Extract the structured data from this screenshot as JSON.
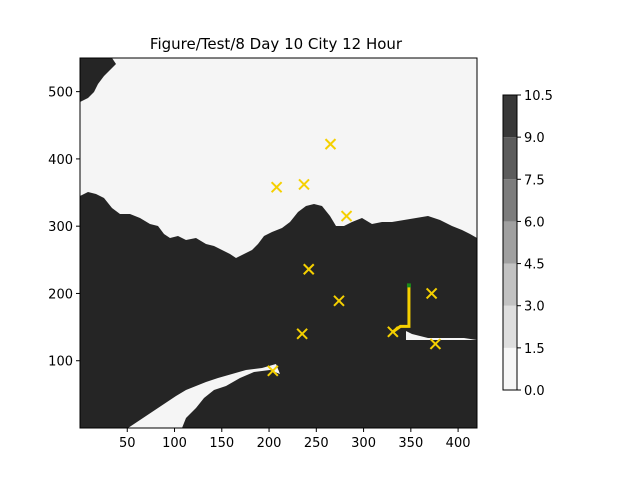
{
  "chart_data": {
    "type": "heatmap",
    "title": "Figure/Test/8 Day 10 City 12 Hour",
    "xlabel": "",
    "ylabel": "",
    "xlim": [
      0,
      420
    ],
    "ylim": [
      0,
      550
    ],
    "xticks": [
      50,
      100,
      150,
      200,
      250,
      300,
      350,
      400
    ],
    "yticks": [
      100,
      200,
      300,
      400,
      500
    ],
    "grid": false,
    "map_colors": {
      "land": "#f5f5f5",
      "water": "#252525"
    },
    "cities": [
      {
        "x": 265,
        "y": 422
      },
      {
        "x": 208,
        "y": 358
      },
      {
        "x": 237,
        "y": 362
      },
      {
        "x": 282,
        "y": 315
      },
      {
        "x": 242,
        "y": 236
      },
      {
        "x": 274,
        "y": 189
      },
      {
        "x": 372,
        "y": 200
      },
      {
        "x": 235,
        "y": 140
      },
      {
        "x": 331,
        "y": 143
      },
      {
        "x": 376,
        "y": 125
      },
      {
        "x": 204,
        "y": 85
      }
    ],
    "city_color": "#f5d000",
    "path": {
      "color": "#f5d000",
      "points": [
        [
          348,
          212
        ],
        [
          348,
          151
        ],
        [
          339,
          151
        ],
        [
          331,
          143
        ]
      ],
      "start_marker_color": "#1a8a1a"
    },
    "colorbar": {
      "levels": [
        0.0,
        1.5,
        3.0,
        4.5,
        6.0,
        7.5,
        9.0,
        10.5
      ],
      "labels": [
        "0.0",
        "1.5",
        "3.0",
        "4.5",
        "6.0",
        "7.5",
        "9.0",
        "10.5"
      ],
      "colors": [
        "#f7f7f7",
        "#dedede",
        "#c2c2c2",
        "#a0a0a0",
        "#7d7d7d",
        "#5c5c5c",
        "#383838"
      ]
    }
  }
}
